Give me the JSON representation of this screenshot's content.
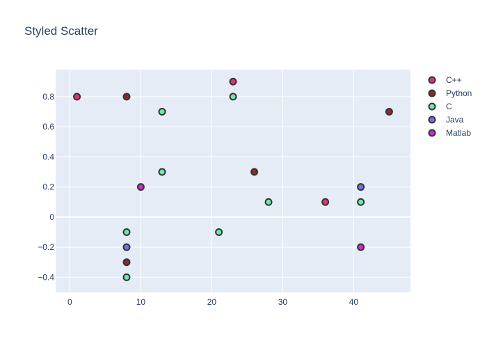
{
  "chart_data": {
    "type": "scatter",
    "title": "Styled Scatter",
    "xlabel": "",
    "ylabel": "",
    "xlim": [
      -2,
      48
    ],
    "ylim": [
      -0.5,
      0.98
    ],
    "x_ticks": [
      0,
      10,
      20,
      30,
      40
    ],
    "y_ticks": [
      -0.4,
      -0.2,
      0,
      0.2,
      0.4,
      0.6,
      0.8
    ],
    "y_tick_labels": [
      "−0.4",
      "−0.2",
      "0",
      "0.2",
      "0.4",
      "0.6",
      "0.8"
    ],
    "grid": true,
    "legend_position": "top-right",
    "series": [
      {
        "name": "C++",
        "color": "#e0336f",
        "points": [
          [
            1,
            0.8
          ],
          [
            23,
            0.9
          ],
          [
            36,
            0.1
          ]
        ]
      },
      {
        "name": "Python",
        "color": "#8a2c2c",
        "points": [
          [
            8,
            0.8
          ],
          [
            45,
            0.7
          ],
          [
            26,
            0.3
          ],
          [
            8,
            -0.3
          ]
        ]
      },
      {
        "name": "C",
        "color": "#6ee7b0",
        "points": [
          [
            13,
            0.7
          ],
          [
            23,
            0.8
          ],
          [
            13,
            0.3
          ],
          [
            28,
            0.1
          ],
          [
            41,
            0.1
          ],
          [
            8,
            -0.1
          ],
          [
            21,
            -0.1
          ],
          [
            8,
            -0.4
          ]
        ]
      },
      {
        "name": "Java",
        "color": "#7a6fe0",
        "points": [
          [
            41,
            0.2
          ],
          [
            8,
            -0.2
          ]
        ]
      },
      {
        "name": "Matlab",
        "color": "#c42fc4",
        "points": [
          [
            10,
            0.2
          ],
          [
            41,
            -0.2
          ]
        ]
      }
    ],
    "colors": {
      "plot_bg": "#e5ecf6",
      "grid": "#ffffff",
      "text": "#2a3f5f",
      "marker_outline": "#333333"
    }
  }
}
